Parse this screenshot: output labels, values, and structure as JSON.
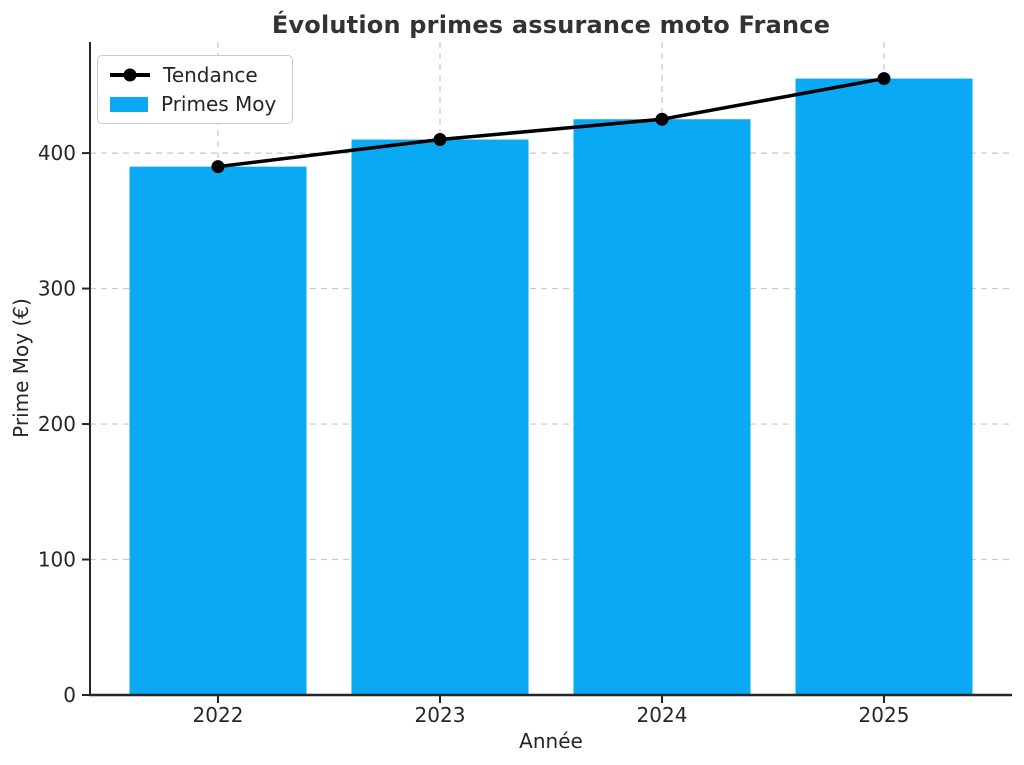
{
  "chart_data": {
    "type": "bar",
    "title": "Évolution primes assurance moto France",
    "xlabel": "Année",
    "ylabel": "Prime Moy (€)",
    "categories": [
      "2022",
      "2023",
      "2024",
      "2025"
    ],
    "series": [
      {
        "name": "Tendance",
        "type": "line",
        "color": "#000000",
        "values": [
          390,
          410,
          425,
          455
        ]
      },
      {
        "name": "Primes Moy",
        "type": "bar",
        "color": "#09A9F3",
        "values": [
          390,
          410,
          425,
          455
        ]
      }
    ],
    "ylim": [
      0,
      482
    ],
    "yticks": [
      0,
      100,
      200,
      300,
      400
    ],
    "grid": "dashed-both-axes",
    "grid_color": "#c9c9c9",
    "axis_color": "#262626",
    "title_color": "#333333",
    "legend_position": "upper-left",
    "legend_items": [
      "Tendance",
      "Primes Moy"
    ]
  }
}
